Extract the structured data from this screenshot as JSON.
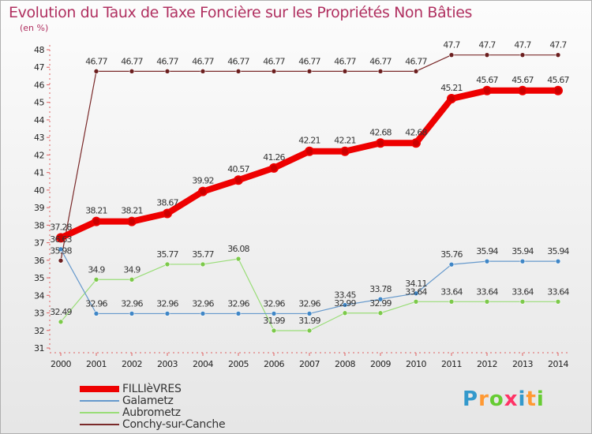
{
  "title": "Evolution du Taux de Taxe Foncière sur les Propriétés Non Bâties",
  "unit": "(en %)",
  "logo": {
    "letters": [
      "P",
      "r",
      "o",
      "x",
      "i",
      "t",
      "i"
    ],
    "colors": [
      "#3399cc",
      "#ff9933",
      "#66cc33",
      "#ff3366",
      "#3399cc",
      "#ff9933",
      "#66cc33"
    ]
  },
  "chart_data": {
    "type": "line",
    "title": "Evolution du Taux de Taxe Foncière sur les Propriétés Non Bâties",
    "ylabel": "(en %)",
    "xlabel": "",
    "x": [
      "2000",
      "2001",
      "2002",
      "2003",
      "2004",
      "2005",
      "2006",
      "2007",
      "2008",
      "2009",
      "2010",
      "2011",
      "2012",
      "2013",
      "2014"
    ],
    "ylim": [
      31,
      48
    ],
    "yticks": [
      31,
      32,
      33,
      34,
      35,
      36,
      37,
      38,
      39,
      40,
      41,
      42,
      43,
      44,
      45,
      46,
      47,
      48
    ],
    "grid": false,
    "legend_position": "bottom-left",
    "series": [
      {
        "name": "FILLIèVRES",
        "color": "#ee0000",
        "width": 8,
        "values": [
          37.28,
          38.21,
          38.21,
          38.67,
          39.92,
          40.57,
          41.26,
          42.21,
          42.21,
          42.68,
          42.68,
          45.21,
          45.67,
          45.67,
          45.67
        ],
        "labels": [
          "37.28",
          "38.21",
          "38.21",
          "38.67",
          "39.92",
          "40.57",
          "41.26",
          "42.21",
          "42.21",
          "42.68",
          "42.68",
          "45.21",
          "45.67",
          "45.67",
          "45.67"
        ]
      },
      {
        "name": "Galametz",
        "color": "#6699cc",
        "width": 1.2,
        "values": [
          36.63,
          32.96,
          32.96,
          32.96,
          32.96,
          32.96,
          32.96,
          32.96,
          33.45,
          33.78,
          34.11,
          35.76,
          35.94,
          35.94,
          35.94
        ],
        "labels": [
          "36.63",
          "32.96",
          "32.96",
          "32.96",
          "32.96",
          "32.96",
          "32.96",
          "32.96",
          "33.45",
          "33.78",
          "34.11",
          "35.76",
          "35.94",
          "35.94",
          "35.94"
        ]
      },
      {
        "name": "Aubrometz",
        "color": "#99dd77",
        "width": 1.2,
        "values": [
          32.49,
          34.9,
          34.9,
          35.77,
          35.77,
          36.08,
          31.99,
          31.99,
          32.99,
          32.99,
          33.64,
          33.64,
          33.64,
          33.64,
          33.64
        ],
        "labels": [
          "32.49",
          "34.9",
          "34.9",
          "35.77",
          "35.77",
          "36.08",
          "31.99",
          "31.99",
          "32.99",
          "32.99",
          "33.64",
          "33.64",
          "33.64",
          "33.64",
          "33.64"
        ]
      },
      {
        "name": "Conchy-sur-Canche",
        "color": "#7a2a2a",
        "width": 1.2,
        "values": [
          35.98,
          46.77,
          46.77,
          46.77,
          46.77,
          46.77,
          46.77,
          46.77,
          46.77,
          46.77,
          46.77,
          47.7,
          47.7,
          47.7,
          47.7
        ],
        "labels": [
          "35.98",
          "46.77",
          "46.77",
          "46.77",
          "46.77",
          "46.77",
          "46.77",
          "46.77",
          "46.77",
          "46.77",
          "46.77",
          "47.7",
          "47.7",
          "47.7",
          "47.7"
        ]
      }
    ]
  }
}
